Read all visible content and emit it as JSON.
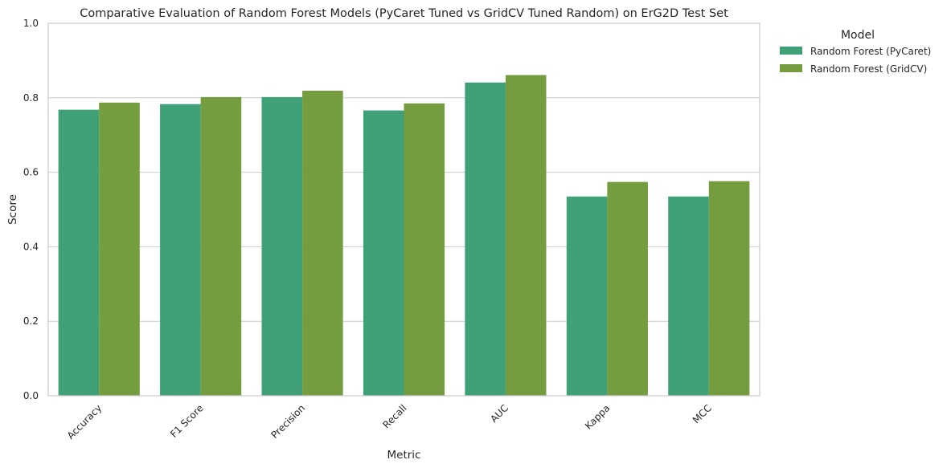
{
  "chart_data": {
    "type": "bar",
    "title": "Comparative Evaluation of Random Forest Models (PyCaret Tuned vs GridCV Tuned Random) on ErG2D Test Set",
    "xlabel": "Metric",
    "ylabel": "Score",
    "categories": [
      "Accuracy",
      "F1 Score",
      "Precision",
      "Recall",
      "AUC",
      "Kappa",
      "MCC"
    ],
    "series": [
      {
        "name": "Random Forest (PyCaret)",
        "color": "#40a078",
        "values": [
          0.768,
          0.783,
          0.802,
          0.766,
          0.841,
          0.535,
          0.535
        ]
      },
      {
        "name": "Random Forest (GridCV)",
        "color": "#759c3f",
        "values": [
          0.787,
          0.802,
          0.819,
          0.785,
          0.861,
          0.574,
          0.576
        ]
      }
    ],
    "ylim": [
      0,
      1.0
    ],
    "yticks": [
      0.0,
      0.2,
      0.4,
      0.6,
      0.8,
      1.0
    ],
    "ytick_labels": [
      "0.0",
      "0.2",
      "0.4",
      "0.6",
      "0.8",
      "1.0"
    ],
    "grid": true,
    "legend": {
      "title": "Model",
      "placement": "outside-top-right"
    }
  }
}
